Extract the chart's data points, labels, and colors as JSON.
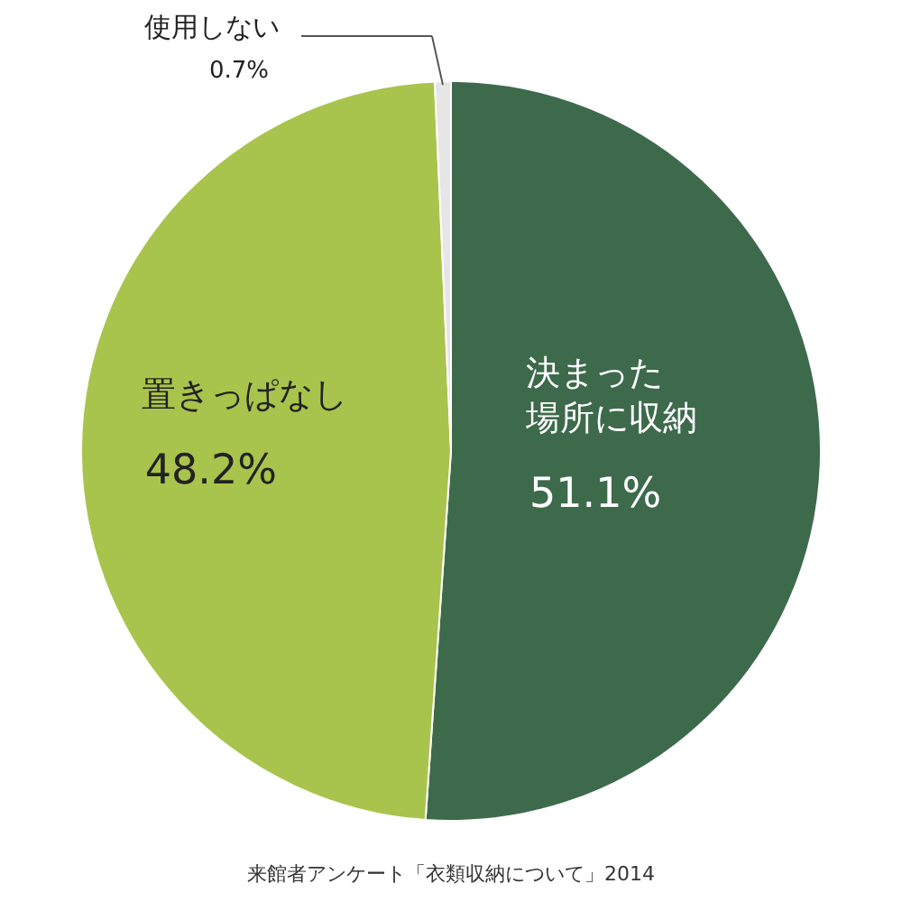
{
  "chart_data": {
    "type": "pie",
    "categories": [
      "決まった場所に収納",
      "置きっぱなし",
      "使用しない"
    ],
    "values": [
      51.1,
      48.2,
      0.7
    ],
    "value_labels": [
      "51.1%",
      "48.2%",
      "0.7%"
    ],
    "colors": [
      "#3e6a4c",
      "#a9c44c",
      "#e6e6e6"
    ],
    "annotations": [
      "来館者アンケート「衣類収納について」2014"
    ]
  }
}
